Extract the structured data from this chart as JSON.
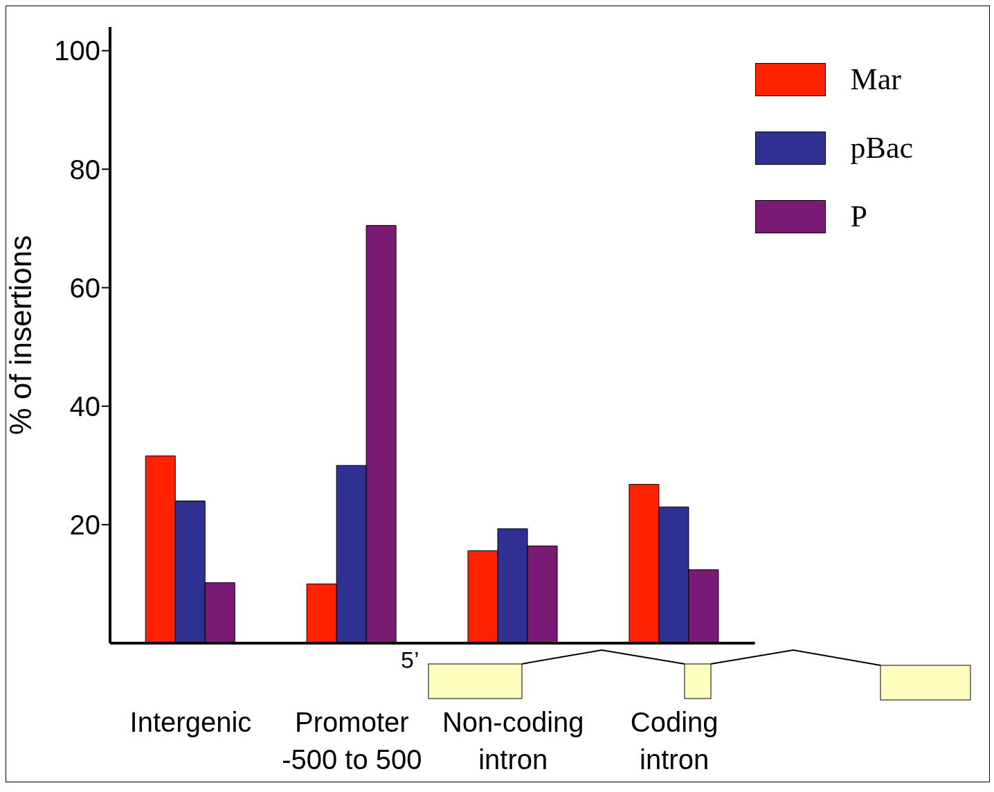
{
  "chart_data": {
    "type": "bar",
    "ylabel": "% of insertions",
    "categories": [
      "Intergenic",
      "Promoter -500 to 500",
      "Non-coding intron",
      "Coding intron"
    ],
    "series": [
      {
        "name": "Mar",
        "color": "#ff2200",
        "values": [
          31.6,
          10,
          15.6,
          26.8
        ]
      },
      {
        "name": "pBac",
        "color": "#2e3192",
        "values": [
          24,
          30,
          19.3,
          23
        ]
      },
      {
        "name": "P",
        "color": "#7b1a74",
        "values": [
          10.2,
          70.5,
          16.4,
          12.4
        ]
      }
    ],
    "ylim": [
      0,
      104
    ],
    "yticks": [
      20,
      40,
      60,
      80,
      100
    ],
    "grid": false,
    "legend": "top right",
    "annotations": [
      "5’"
    ]
  }
}
